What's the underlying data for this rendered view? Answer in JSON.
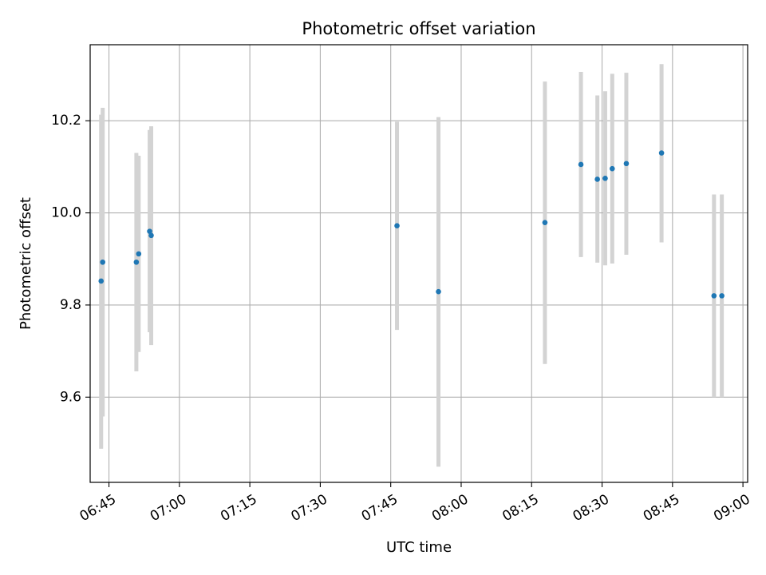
{
  "chart_data": {
    "type": "scatter",
    "title": "Photometric offset variation",
    "xlabel": "UTC time",
    "ylabel": "Photometric offset",
    "x_axis": "time",
    "xlim": [
      "06:41",
      "09:01"
    ],
    "ylim": [
      9.415,
      10.365
    ],
    "x_ticks": [
      "06:45",
      "07:00",
      "07:15",
      "07:30",
      "07:45",
      "08:00",
      "08:15",
      "08:30",
      "08:45",
      "09:00"
    ],
    "y_ticks": [
      9.6,
      9.8,
      10.0,
      10.2
    ],
    "grid": true,
    "colors": {
      "point": "#1f77b4",
      "errorbar": "#d3d3d3",
      "grid": "#b0b0b0"
    },
    "series": [
      {
        "points": [
          {
            "time": "06:43:20",
            "y": 9.852,
            "low": 9.488,
            "high": 10.213
          },
          {
            "time": "06:43:40",
            "y": 9.893,
            "low": 9.558,
            "high": 10.228
          },
          {
            "time": "06:50:50",
            "y": 9.893,
            "low": 9.656,
            "high": 10.13
          },
          {
            "time": "06:51:20",
            "y": 9.911,
            "low": 9.698,
            "high": 10.124
          },
          {
            "time": "06:53:40",
            "y": 9.96,
            "low": 9.741,
            "high": 10.18
          },
          {
            "time": "06:54:00",
            "y": 9.951,
            "low": 9.713,
            "high": 10.188
          },
          {
            "time": "07:46:20",
            "y": 9.972,
            "low": 9.746,
            "high": 10.198
          },
          {
            "time": "07:55:10",
            "y": 9.829,
            "low": 9.449,
            "high": 10.208
          },
          {
            "time": "08:17:50",
            "y": 9.979,
            "low": 9.672,
            "high": 10.285
          },
          {
            "time": "08:25:30",
            "y": 10.105,
            "low": 9.904,
            "high": 10.306
          },
          {
            "time": "08:29:00",
            "y": 10.073,
            "low": 9.892,
            "high": 10.255
          },
          {
            "time": "08:30:40",
            "y": 10.075,
            "low": 9.886,
            "high": 10.264
          },
          {
            "time": "08:32:10",
            "y": 10.096,
            "low": 9.89,
            "high": 10.302
          },
          {
            "time": "08:35:10",
            "y": 10.107,
            "low": 9.909,
            "high": 10.304
          },
          {
            "time": "08:42:40",
            "y": 10.13,
            "low": 9.936,
            "high": 10.323
          },
          {
            "time": "08:53:50",
            "y": 9.82,
            "low": 9.6,
            "high": 10.04
          },
          {
            "time": "08:55:30",
            "y": 9.82,
            "low": 9.6,
            "high": 10.04
          }
        ]
      }
    ]
  }
}
